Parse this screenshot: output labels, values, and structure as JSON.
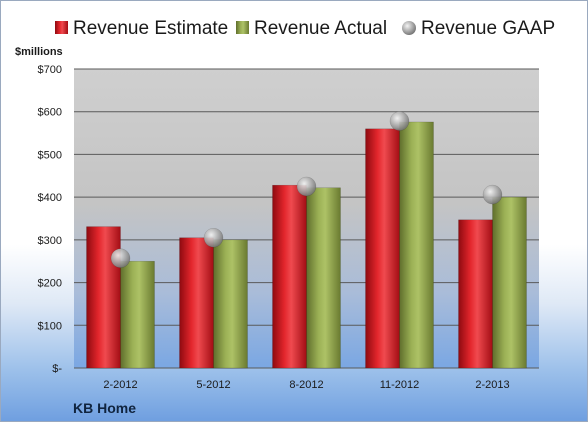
{
  "chart_data": {
    "type": "bar",
    "title": "",
    "company": "KB Home",
    "unit_label": "$millions",
    "categories": [
      "2-2012",
      "5-2012",
      "8-2012",
      "11-2012",
      "2-2013"
    ],
    "series": [
      {
        "name": "Revenue Estimate",
        "kind": "bar",
        "color": "#d0121b",
        "values": [
          331,
          305,
          428,
          560,
          347
        ]
      },
      {
        "name": "Revenue Actual",
        "kind": "bar",
        "color": "#8fa24a",
        "values": [
          250,
          300,
          422,
          576,
          400
        ]
      },
      {
        "name": "Revenue GAAP",
        "kind": "marker",
        "color": "#a9a9a9",
        "values": [
          257,
          305,
          425,
          578,
          406
        ]
      }
    ],
    "y_ticks": [
      {
        "value": 0,
        "label": "$-"
      },
      {
        "value": 100,
        "label": "$100"
      },
      {
        "value": 200,
        "label": "$200"
      },
      {
        "value": 300,
        "label": "$300"
      },
      {
        "value": 400,
        "label": "$400"
      },
      {
        "value": 500,
        "label": "$500"
      },
      {
        "value": 600,
        "label": "$600"
      },
      {
        "value": 700,
        "label": "$700"
      }
    ],
    "ylim": [
      0,
      700
    ],
    "grid": true,
    "legend_position": "top"
  }
}
